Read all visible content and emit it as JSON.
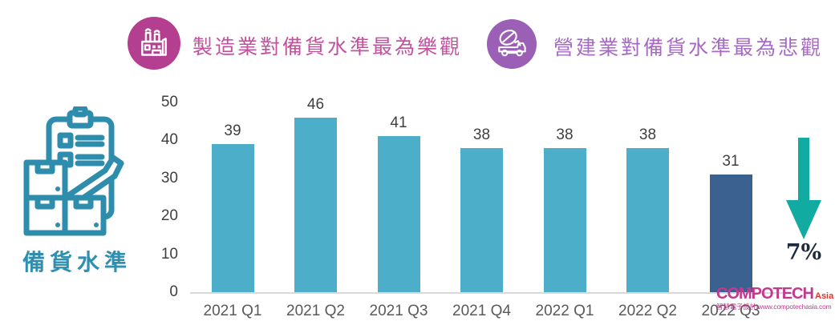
{
  "header": {
    "badge1": {
      "icon": "factory-icon",
      "label": "製造業對備貨水準最為樂觀"
    },
    "badge2": {
      "icon": "cement-mixer-icon",
      "label": "營建業對備貨水準最為悲觀"
    }
  },
  "left_panel": {
    "icon": "inventory-clipboard-icon",
    "caption": "備貨水準"
  },
  "chart_data": {
    "type": "bar",
    "categories": [
      "2021 Q1",
      "2021 Q2",
      "2021 Q3",
      "2021 Q4",
      "2022 Q1",
      "2022 Q2",
      "2022 Q3"
    ],
    "values": [
      39,
      46,
      41,
      38,
      38,
      38,
      31
    ],
    "bar_colors": [
      "#4daec9",
      "#4daec9",
      "#4daec9",
      "#4daec9",
      "#4daec9",
      "#4daec9",
      "#3a618f"
    ],
    "title": "",
    "xlabel": "",
    "ylabel": "",
    "ylim": [
      0,
      50
    ],
    "yticks": [
      0,
      10,
      20,
      30,
      40,
      50
    ],
    "grid": false,
    "legend": false,
    "data_labels": true
  },
  "annotation": {
    "icon": "down-arrow-icon",
    "label": "7%"
  },
  "logo": {
    "name": "COMPOTECH",
    "suffix": "Asia",
    "tagline": "智慧電子設計|www.compotechasia.com"
  },
  "colors": {
    "bar": "#4daec9",
    "bar_last": "#3a618f",
    "pink_circle": "#b43e8f",
    "pink_text": "#c2519e",
    "purple_circle": "#9b5fb6",
    "purple_text": "#a76ac4",
    "teal_icon": "#2e8cad",
    "teal_text": "#2e8fb0",
    "arrow": "#12aba2",
    "pct_text": "#1f2b3c",
    "axis_text": "#3f3f3f",
    "logo_magenta": "#c23a8f",
    "logo_red": "#e63329"
  }
}
